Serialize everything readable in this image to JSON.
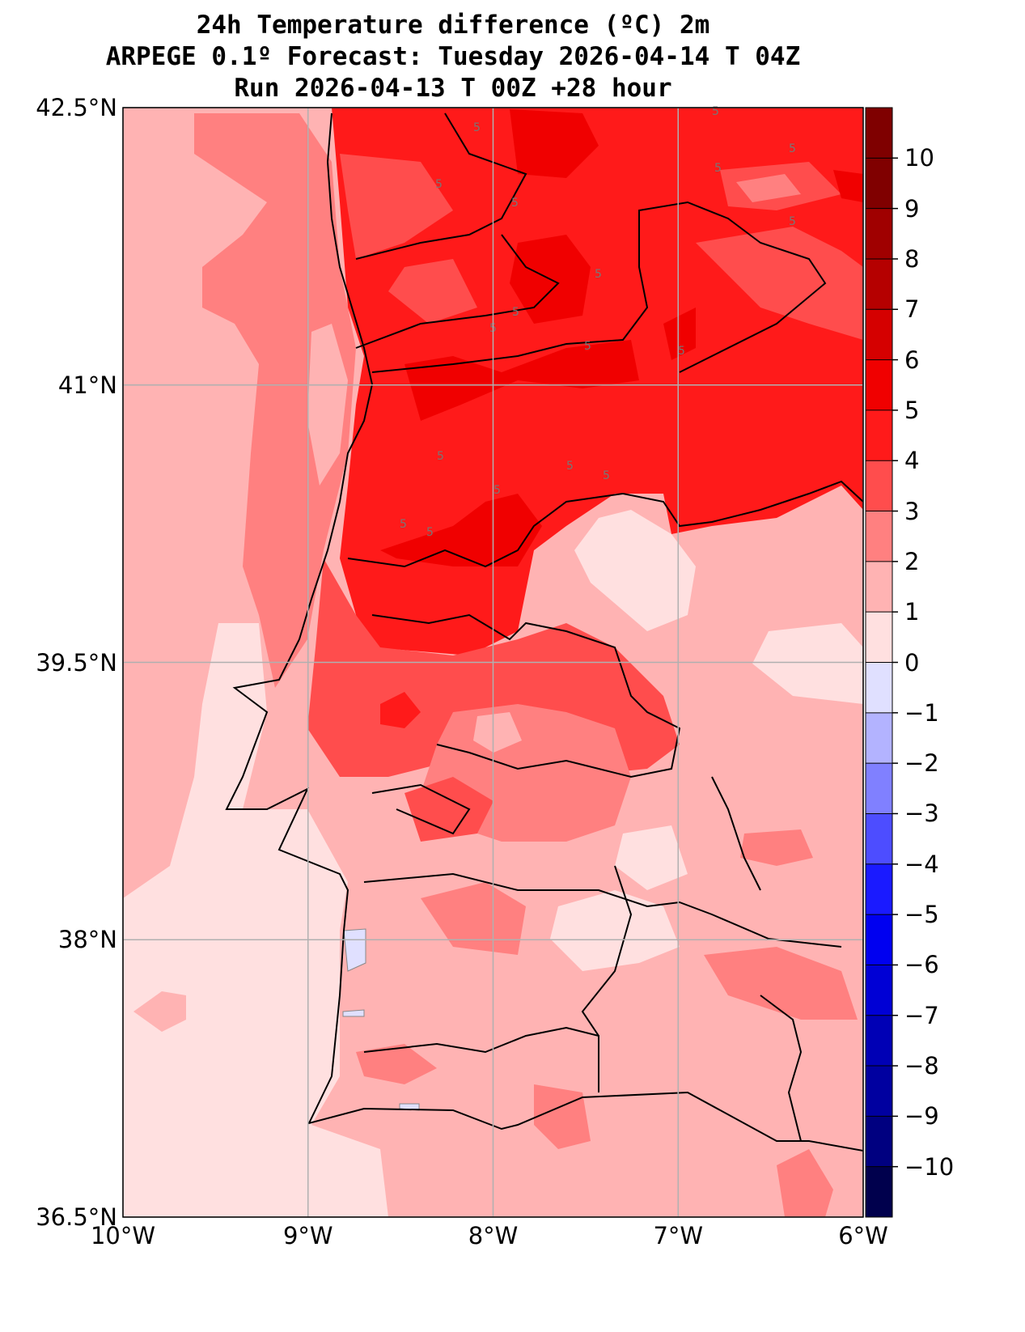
{
  "title": {
    "line1": "24h Temperature difference (ºC) 2m",
    "line2": "ARPEGE 0.1º Forecast: Tuesday 2026-04-14 T 04Z",
    "line3": "Run 2026-04-13 T 00Z +28 hour"
  },
  "axes": {
    "lon_range": [
      -10,
      -6
    ],
    "lat_range": [
      36.5,
      42.5
    ],
    "lat_ticks": [
      {
        "value": 42.5,
        "label": "42.5°N"
      },
      {
        "value": 41,
        "label": "41°N"
      },
      {
        "value": 39.5,
        "label": "39.5°N"
      },
      {
        "value": 38,
        "label": "38°N"
      },
      {
        "value": 36.5,
        "label": "36.5°N"
      }
    ],
    "lon_ticks": [
      {
        "value": -10,
        "label": "10°W"
      },
      {
        "value": -9,
        "label": "9°W"
      },
      {
        "value": -8,
        "label": "8°W"
      },
      {
        "value": -7,
        "label": "7°W"
      },
      {
        "value": -6,
        "label": "6°W"
      }
    ]
  },
  "contour_label": "5",
  "colorbar": {
    "range": [
      -11,
      11
    ],
    "ticks": [
      {
        "value": 10,
        "label": "10"
      },
      {
        "value": 9,
        "label": "9"
      },
      {
        "value": 8,
        "label": "8"
      },
      {
        "value": 7,
        "label": "7"
      },
      {
        "value": 6,
        "label": "6"
      },
      {
        "value": 5,
        "label": "5"
      },
      {
        "value": 4,
        "label": "4"
      },
      {
        "value": 3,
        "label": "3"
      },
      {
        "value": 2,
        "label": "2"
      },
      {
        "value": 1,
        "label": "1"
      },
      {
        "value": 0,
        "label": "0"
      },
      {
        "value": -1,
        "label": "−1"
      },
      {
        "value": -2,
        "label": "−2"
      },
      {
        "value": -3,
        "label": "−3"
      },
      {
        "value": -4,
        "label": "−4"
      },
      {
        "value": -5,
        "label": "−5"
      },
      {
        "value": -6,
        "label": "−6"
      },
      {
        "value": -7,
        "label": "−7"
      },
      {
        "value": -8,
        "label": "−8"
      },
      {
        "value": -9,
        "label": "−9"
      },
      {
        "value": -10,
        "label": "−10"
      }
    ],
    "bins": [
      {
        "from": 10,
        "to": 11,
        "color": "#7f0000"
      },
      {
        "from": 9,
        "to": 10,
        "color": "#800000"
      },
      {
        "from": 8,
        "to": 9,
        "color": "#a00000"
      },
      {
        "from": 7,
        "to": 8,
        "color": "#b50000"
      },
      {
        "from": 6,
        "to": 7,
        "color": "#d50000"
      },
      {
        "from": 5,
        "to": 6,
        "color": "#f00000"
      },
      {
        "from": 4,
        "to": 5,
        "color": "#ff1a1a"
      },
      {
        "from": 3,
        "to": 4,
        "color": "#ff4d4d"
      },
      {
        "from": 2,
        "to": 3,
        "color": "#ff8080"
      },
      {
        "from": 1,
        "to": 2,
        "color": "#ffb3b3"
      },
      {
        "from": 0,
        "to": 1,
        "color": "#ffe0e0"
      },
      {
        "from": -1,
        "to": 0,
        "color": "#e0e0ff"
      },
      {
        "from": -2,
        "to": -1,
        "color": "#b3b3ff"
      },
      {
        "from": -3,
        "to": -2,
        "color": "#8080ff"
      },
      {
        "from": -4,
        "to": -3,
        "color": "#4d4dff"
      },
      {
        "from": -5,
        "to": -4,
        "color": "#1a1aff"
      },
      {
        "from": -6,
        "to": -5,
        "color": "#0000f0"
      },
      {
        "from": -7,
        "to": -6,
        "color": "#0000d5"
      },
      {
        "from": -8,
        "to": -7,
        "color": "#0000b5"
      },
      {
        "from": -9,
        "to": -8,
        "color": "#0000a0"
      },
      {
        "from": -10,
        "to": -9,
        "color": "#000080"
      },
      {
        "from": -11,
        "to": -10,
        "color": "#00004d"
      }
    ]
  }
}
